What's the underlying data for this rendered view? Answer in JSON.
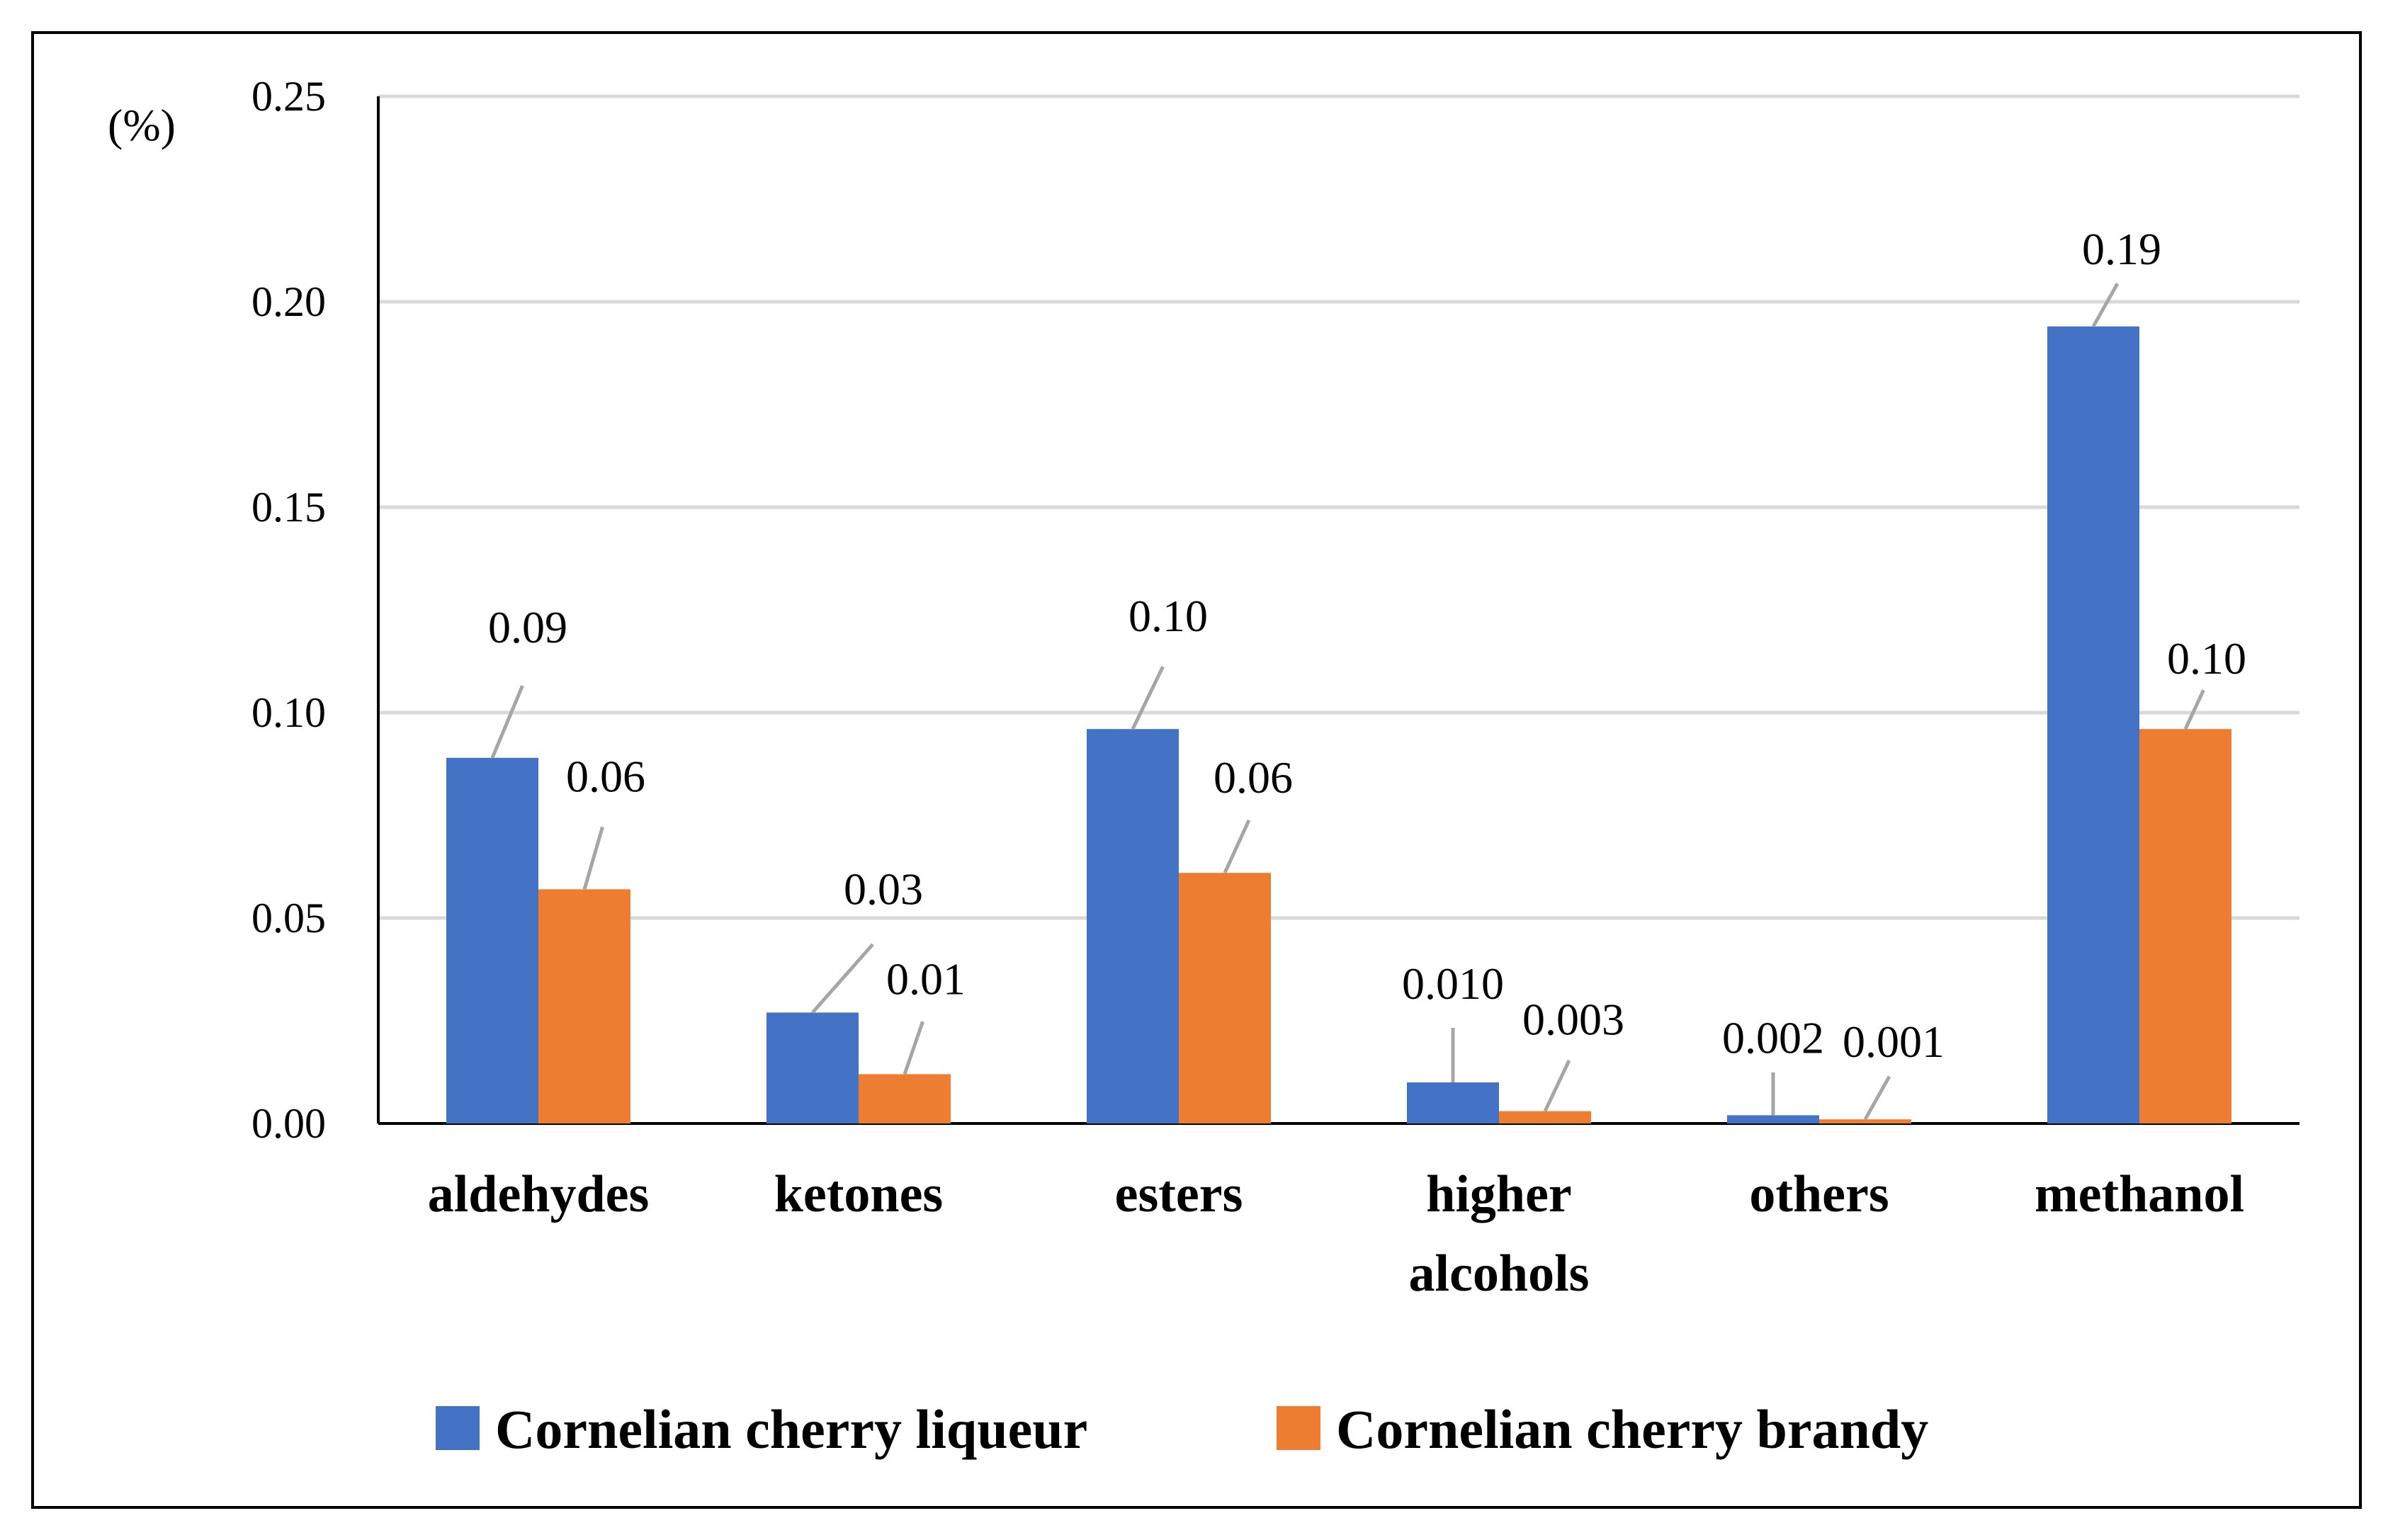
{
  "chart_data": {
    "type": "bar",
    "title": "",
    "ylabel": "(%)",
    "xlabel": "",
    "ylim": [
      0,
      0.25
    ],
    "yticks": [
      "0.00",
      "0.05",
      "0.10",
      "0.15",
      "0.20",
      "0.25"
    ],
    "ytick_values": [
      0,
      0.05,
      0.1,
      0.15,
      0.2,
      0.25
    ],
    "grid": true,
    "legend_position": "bottom",
    "categories": [
      [
        "aldehydes"
      ],
      [
        "ketones"
      ],
      [
        "esters"
      ],
      [
        "higher",
        "alcohols"
      ],
      [
        "others"
      ],
      [
        "methanol"
      ]
    ],
    "series": [
      {
        "name": "Cornelian cherry liqueur",
        "color": "#4472C4",
        "values": [
          0.089,
          0.027,
          0.096,
          0.01,
          0.002,
          0.194
        ],
        "labels": [
          "0.09",
          "0.03",
          "0.10",
          "0.010",
          "0.002",
          "0.19"
        ]
      },
      {
        "name": "Cornelian cherry brandy",
        "color": "#ED7D31",
        "values": [
          0.057,
          0.012,
          0.061,
          0.003,
          0.001,
          0.096
        ],
        "labels": [
          "0.06",
          "0.01",
          "0.06",
          "0.003",
          "0.001",
          "0.10"
        ]
      }
    ]
  }
}
